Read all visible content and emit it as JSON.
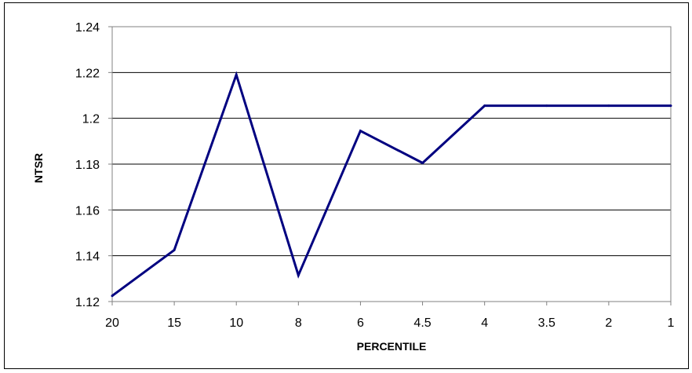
{
  "chart_data": {
    "type": "line",
    "title": "",
    "xlabel": "PERCENTILE",
    "ylabel": "NTSR",
    "categories": [
      "20",
      "15",
      "10",
      "8",
      "6",
      "4.5",
      "4",
      "3.5",
      "2",
      "1"
    ],
    "series": [
      {
        "values": [
          1.1225,
          1.1425,
          1.219,
          1.1315,
          1.1945,
          1.1805,
          1.2055,
          1.2055,
          1.2055,
          1.2055
        ],
        "color": "#000080"
      }
    ],
    "y_ticks": [
      "1.12",
      "1.14",
      "1.16",
      "1.18",
      "1.2",
      "1.22",
      "1.24"
    ],
    "ylim": [
      1.12,
      1.24
    ],
    "grid": "horizontal",
    "legend": "none",
    "colors": {
      "line": "#000080",
      "grid": "#000000",
      "axis": "#808080",
      "background": "#ffffff"
    }
  }
}
